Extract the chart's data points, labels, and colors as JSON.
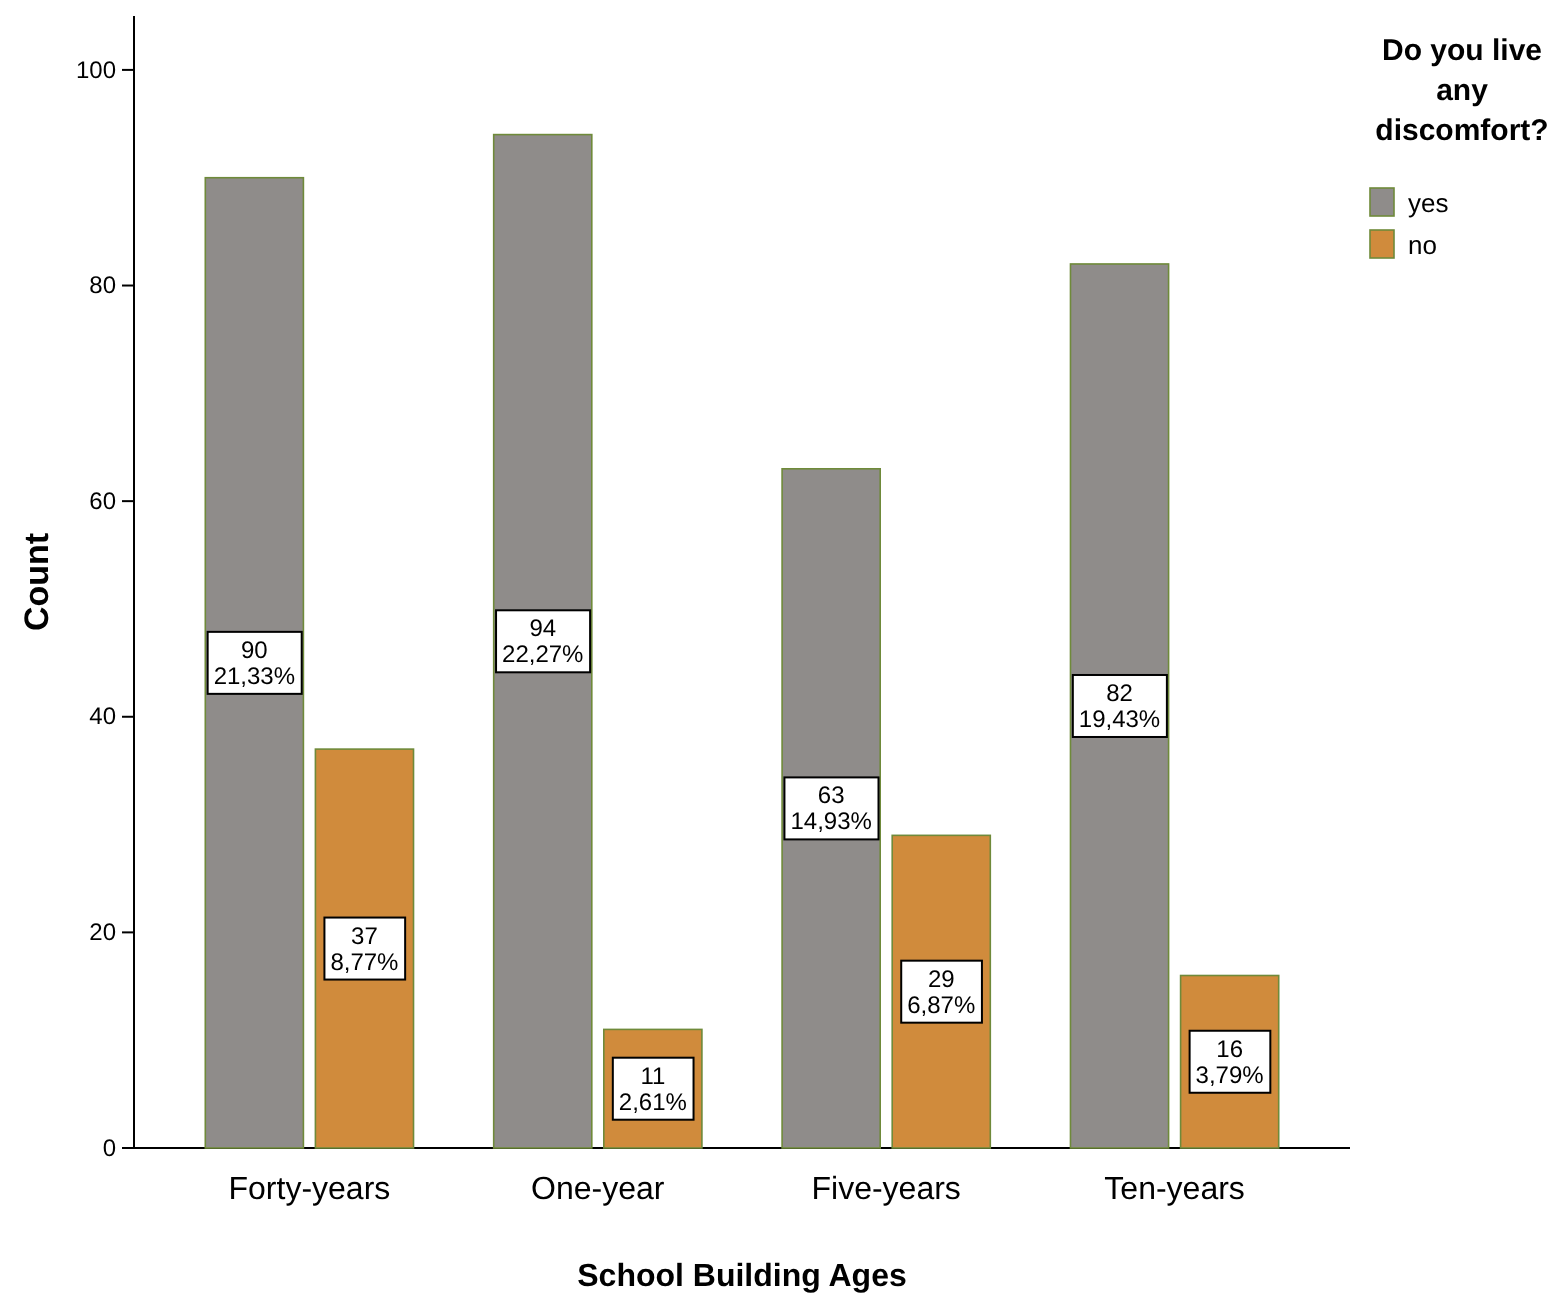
{
  "chart_data": {
    "type": "bar",
    "xlabel": "School Building Ages",
    "ylabel": "Count",
    "legend_title": "Do you live any discomfort?",
    "legend": "top right",
    "grid": false,
    "categories": [
      "Forty-years",
      "One-year",
      "Five-years",
      "Ten-years"
    ],
    "ylim": [
      0,
      105
    ],
    "yticks": [
      0,
      20,
      40,
      60,
      80,
      100
    ],
    "series": [
      {
        "name": "yes",
        "color": "#8f8c8a",
        "values": [
          90,
          94,
          63,
          82
        ],
        "value_labels": [
          "90\n21,33%",
          "94\n22,27%",
          "63\n14,93%",
          "82\n19,43%"
        ]
      },
      {
        "name": "no",
        "color": "#d08b3c",
        "values": [
          37,
          11,
          29,
          16
        ],
        "value_labels": [
          "37\n8,77%",
          "11\n2,61%",
          "29\n6,87%",
          "16\n3,79%"
        ]
      }
    ]
  }
}
